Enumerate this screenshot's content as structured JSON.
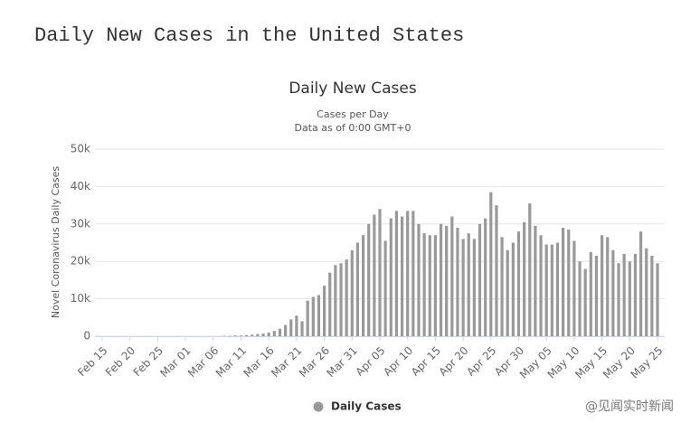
{
  "header": {
    "title": "Daily New Cases in the United States"
  },
  "watermark": "@见闻实时新闻",
  "chart_data": {
    "type": "bar",
    "title": "Daily New Cases",
    "subtitle": "Cases per Day",
    "subtitle2": "Data as of 0:00 GMT+0",
    "y_label": "Novel Coronavirus Daily Cases",
    "categories": [
      "Feb 15",
      null,
      null,
      null,
      null,
      "Feb 20",
      null,
      null,
      null,
      null,
      "Feb 25",
      null,
      null,
      null,
      null,
      "Mar 01",
      null,
      null,
      null,
      null,
      "Mar 06",
      null,
      null,
      null,
      null,
      "Mar 11",
      null,
      null,
      null,
      null,
      "Mar 16",
      null,
      null,
      null,
      null,
      "Mar 21",
      null,
      null,
      null,
      null,
      "Mar 26",
      null,
      null,
      null,
      null,
      "Mar 31",
      null,
      null,
      null,
      null,
      "Apr 05",
      null,
      null,
      null,
      null,
      "Apr 10",
      null,
      null,
      null,
      null,
      "Apr 15",
      null,
      null,
      null,
      null,
      "Apr 20",
      null,
      null,
      null,
      null,
      "Apr 25",
      null,
      null,
      null,
      null,
      "Apr 30",
      null,
      null,
      null,
      null,
      "May 05",
      null,
      null,
      null,
      null,
      "May 10",
      null,
      null,
      null,
      null,
      "May 15",
      null,
      null,
      null,
      null,
      "May 20",
      null,
      null,
      null,
      null,
      "May 25"
    ],
    "series": [
      {
        "name": "Daily Cases",
        "color": "#999999",
        "values": [
          0,
          0,
          0,
          0,
          0,
          0,
          0,
          0,
          0,
          0,
          0,
          0,
          0,
          0,
          0,
          0,
          0,
          0,
          0,
          0,
          0,
          0,
          100,
          100,
          200,
          200,
          300,
          400,
          600,
          700,
          1000,
          1400,
          2000,
          3000,
          4500,
          5500,
          4000,
          9500,
          10500,
          11000,
          13500,
          17000,
          19000,
          19500,
          20500,
          23000,
          25000,
          27000,
          30000,
          32500,
          34000,
          25500,
          31500,
          33500,
          32000,
          33500,
          33500,
          30000,
          27500,
          27000,
          27000,
          30000,
          29500,
          32000,
          29000,
          26000,
          27500,
          26000,
          30000,
          31500,
          38500,
          35000,
          26500,
          23000,
          25000,
          28000,
          30500,
          35500,
          29500,
          27000,
          24500,
          24500,
          25000,
          29000,
          28500,
          25500,
          20000,
          18000,
          22500,
          21500,
          27000,
          26500,
          23000,
          19500,
          22000,
          20000,
          22000,
          28000,
          23500,
          21500,
          19500
        ]
      }
    ],
    "ylim": [
      0,
      50000
    ],
    "yticks": [
      0,
      {
        "value": 10000,
        "label": "10k"
      },
      {
        "value": 20000,
        "label": "20k"
      },
      {
        "value": 30000,
        "label": "30k"
      },
      {
        "value": 40000,
        "label": "40k"
      },
      {
        "value": 50000,
        "label": "50k"
      }
    ],
    "grid": true,
    "legend": "bottom"
  }
}
